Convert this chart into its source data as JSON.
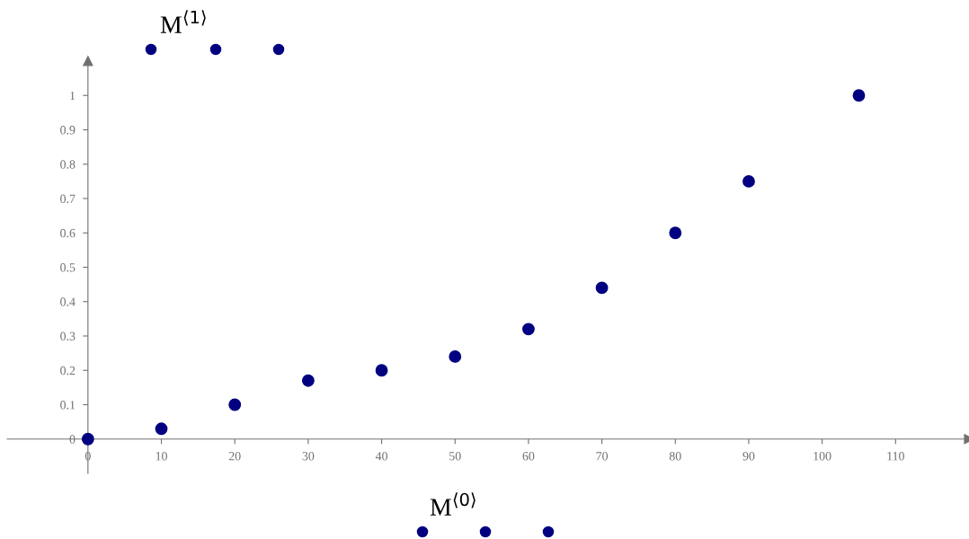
{
  "chart_data": {
    "type": "scatter",
    "xlabel": "M$^{⟨0⟩}$",
    "ylabel": "M$^{⟨1⟩}$",
    "x": [
      0,
      10,
      20,
      30,
      40,
      50,
      60,
      70,
      80,
      90,
      105
    ],
    "series": [
      {
        "color": "#000080",
        "values": [
          0,
          0.03,
          0.1,
          0.17,
          0.2,
          0.24,
          0.32,
          0.44,
          0.6,
          0.75,
          1
        ]
      }
    ],
    "xlim": [
      -11,
      120
    ],
    "ylim": [
      -0.1,
      1.1
    ],
    "xticks": [
      0,
      10,
      20,
      30,
      40,
      50,
      60,
      70,
      80,
      90,
      100,
      110
    ],
    "yticks": [
      0,
      0.1,
      0.2,
      0.3,
      0.4,
      0.5,
      0.6,
      0.7,
      0.8,
      0.9,
      1
    ],
    "marker": "circle",
    "grid": false
  }
}
